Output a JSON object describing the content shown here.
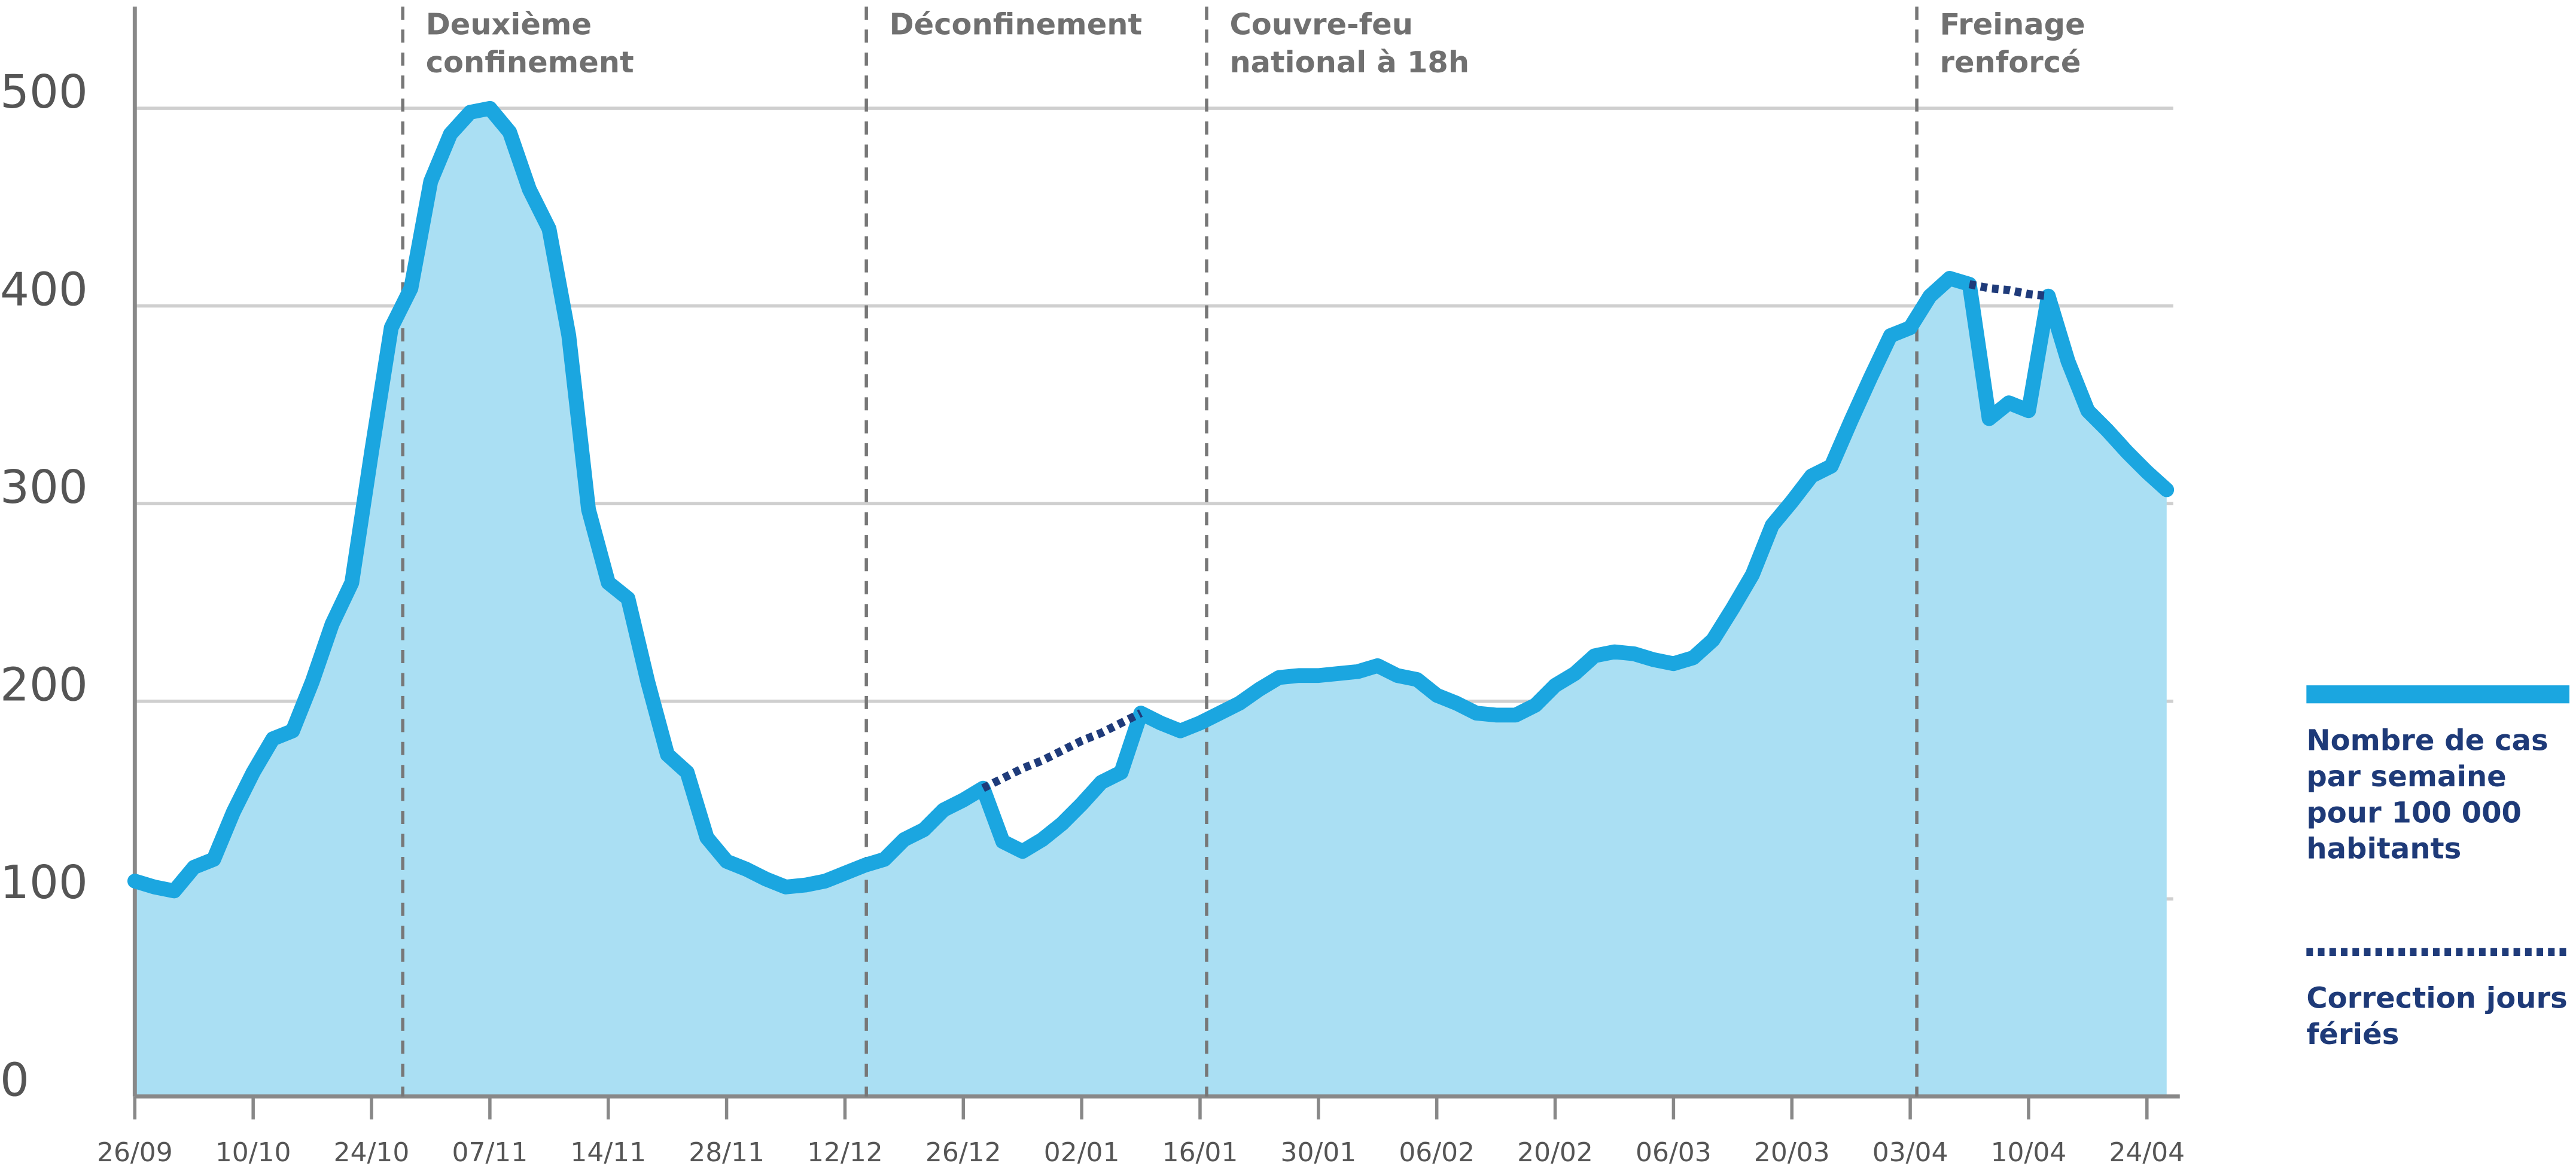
{
  "chart_data": {
    "type": "line",
    "categories": [
      "26/09",
      null,
      null,
      null,
      null,
      null,
      "10/10",
      null,
      null,
      null,
      null,
      null,
      "24/10",
      null,
      null,
      null,
      null,
      null,
      "07/11",
      null,
      null,
      null,
      null,
      null,
      "14/11",
      null,
      null,
      null,
      null,
      null,
      "28/11",
      null,
      null,
      null,
      null,
      null,
      "12/12",
      null,
      null,
      null,
      null,
      null,
      "26/12",
      null,
      null,
      null,
      null,
      null,
      "02/01",
      null,
      null,
      null,
      null,
      null,
      "16/01",
      null,
      null,
      null,
      null,
      null,
      "30/01",
      null,
      null,
      null,
      null,
      null,
      "06/02",
      null,
      null,
      null,
      null,
      null,
      "20/02",
      null,
      null,
      null,
      null,
      null,
      "06/03",
      null,
      null,
      null,
      null,
      null,
      "20/03",
      null,
      null,
      null,
      null,
      null,
      "03/04",
      null,
      null,
      null,
      null,
      null,
      "10/04",
      null,
      null,
      null,
      null,
      null,
      "24/04",
      null
    ],
    "series": [
      {
        "name": "Nombre de cas par semaine pour 100 000 habitants",
        "color": "#1ba6e0",
        "values": [
          109,
          106,
          104,
          116,
          120,
          144,
          164,
          181,
          185,
          210,
          239,
          260,
          326,
          389,
          409,
          463,
          487,
          498,
          500,
          488,
          459,
          439,
          385,
          297,
          260,
          252,
          210,
          173,
          164,
          131,
          119,
          115,
          110,
          106,
          107,
          109,
          113,
          117,
          120,
          130,
          135,
          145,
          150,
          156,
          129,
          124,
          130,
          138,
          148,
          159,
          164,
          194,
          189,
          185,
          189,
          194,
          199,
          206,
          212,
          213,
          213,
          214,
          215,
          218,
          213,
          211,
          203,
          199,
          194,
          193,
          193,
          198,
          208,
          214,
          223,
          225,
          224,
          221,
          219,
          222,
          231,
          247,
          264,
          289,
          301,
          314,
          319,
          342,
          364,
          385,
          389,
          405,
          414,
          411,
          343,
          351,
          347,
          405,
          372,
          347,
          337,
          326,
          316,
          307
        ]
      },
      {
        "name": "Correction jours fériés",
        "color": "#1f3b7a",
        "dashed": true,
        "values": [
          null,
          null,
          null,
          null,
          null,
          null,
          null,
          null,
          null,
          null,
          null,
          null,
          null,
          null,
          null,
          null,
          null,
          null,
          null,
          null,
          null,
          null,
          null,
          null,
          null,
          null,
          null,
          null,
          null,
          null,
          null,
          null,
          null,
          null,
          null,
          null,
          null,
          null,
          null,
          null,
          null,
          null,
          null,
          156,
          161,
          166,
          170,
          175,
          180,
          184,
          189,
          194,
          null,
          null,
          null,
          null,
          null,
          null,
          null,
          null,
          null,
          null,
          null,
          null,
          null,
          null,
          null,
          null,
          null,
          null,
          null,
          null,
          null,
          null,
          null,
          null,
          null,
          null,
          null,
          null,
          null,
          null,
          null,
          null,
          null,
          null,
          null,
          null,
          null,
          null,
          null,
          null,
          null,
          411,
          409,
          408,
          406,
          405,
          null,
          null,
          null,
          null,
          null,
          null
        ]
      }
    ],
    "ylim": [
      0,
      500
    ],
    "yticks": [
      0,
      100,
      200,
      300,
      400,
      500
    ],
    "grid": true,
    "fill_area": "#aadff3",
    "annotations": [
      {
        "text": "Deuxième confinement"
      },
      {
        "text": "Déconfinement"
      },
      {
        "text": "Couvre-feu national à 18h"
      },
      {
        "text": "Freinage renforcé"
      }
    ]
  }
}
